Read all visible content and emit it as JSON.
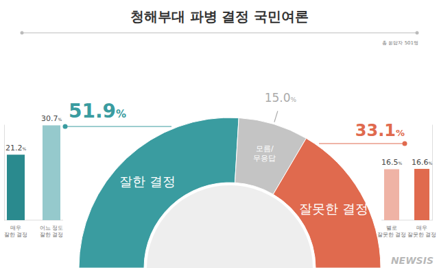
{
  "chart_data": [
    {
      "type": "pie",
      "title": "청해부대 파병 결정 국민여론",
      "subtitle": "총 응답자 501명",
      "source": "NEWSIS",
      "categories": [
        "잘한 결정",
        "모름/무응답",
        "잘못한 결정"
      ],
      "values": [
        51.9,
        15.0,
        33.1
      ],
      "value_labels": [
        "51.9%",
        "15.0%",
        "33.1%"
      ],
      "colors": [
        "#3a9ca0",
        "#c4c4c4",
        "#e06a4e"
      ],
      "data_labels": true
    },
    {
      "type": "bar",
      "categories": [
        "매우 잘한 결정",
        "어느 정도 잘한 결정"
      ],
      "values": [
        21.2,
        30.7
      ],
      "value_labels": [
        "21.2%",
        "30.7%"
      ],
      "colors": [
        "#2a8a8e",
        "#95c9cc"
      ],
      "ylim": [
        0,
        31
      ],
      "tick_labels": false,
      "data_labels": true
    },
    {
      "type": "bar",
      "categories": [
        "별로 잘못한 결정",
        "매우 잘못한 결정"
      ],
      "values": [
        16.5,
        16.6
      ],
      "value_labels": [
        "16.5%",
        "16.6%"
      ],
      "colors": [
        "#efb3a5",
        "#e06a4e"
      ],
      "ylim": [
        0,
        31
      ],
      "tick_labels": false,
      "data_labels": true
    }
  ]
}
